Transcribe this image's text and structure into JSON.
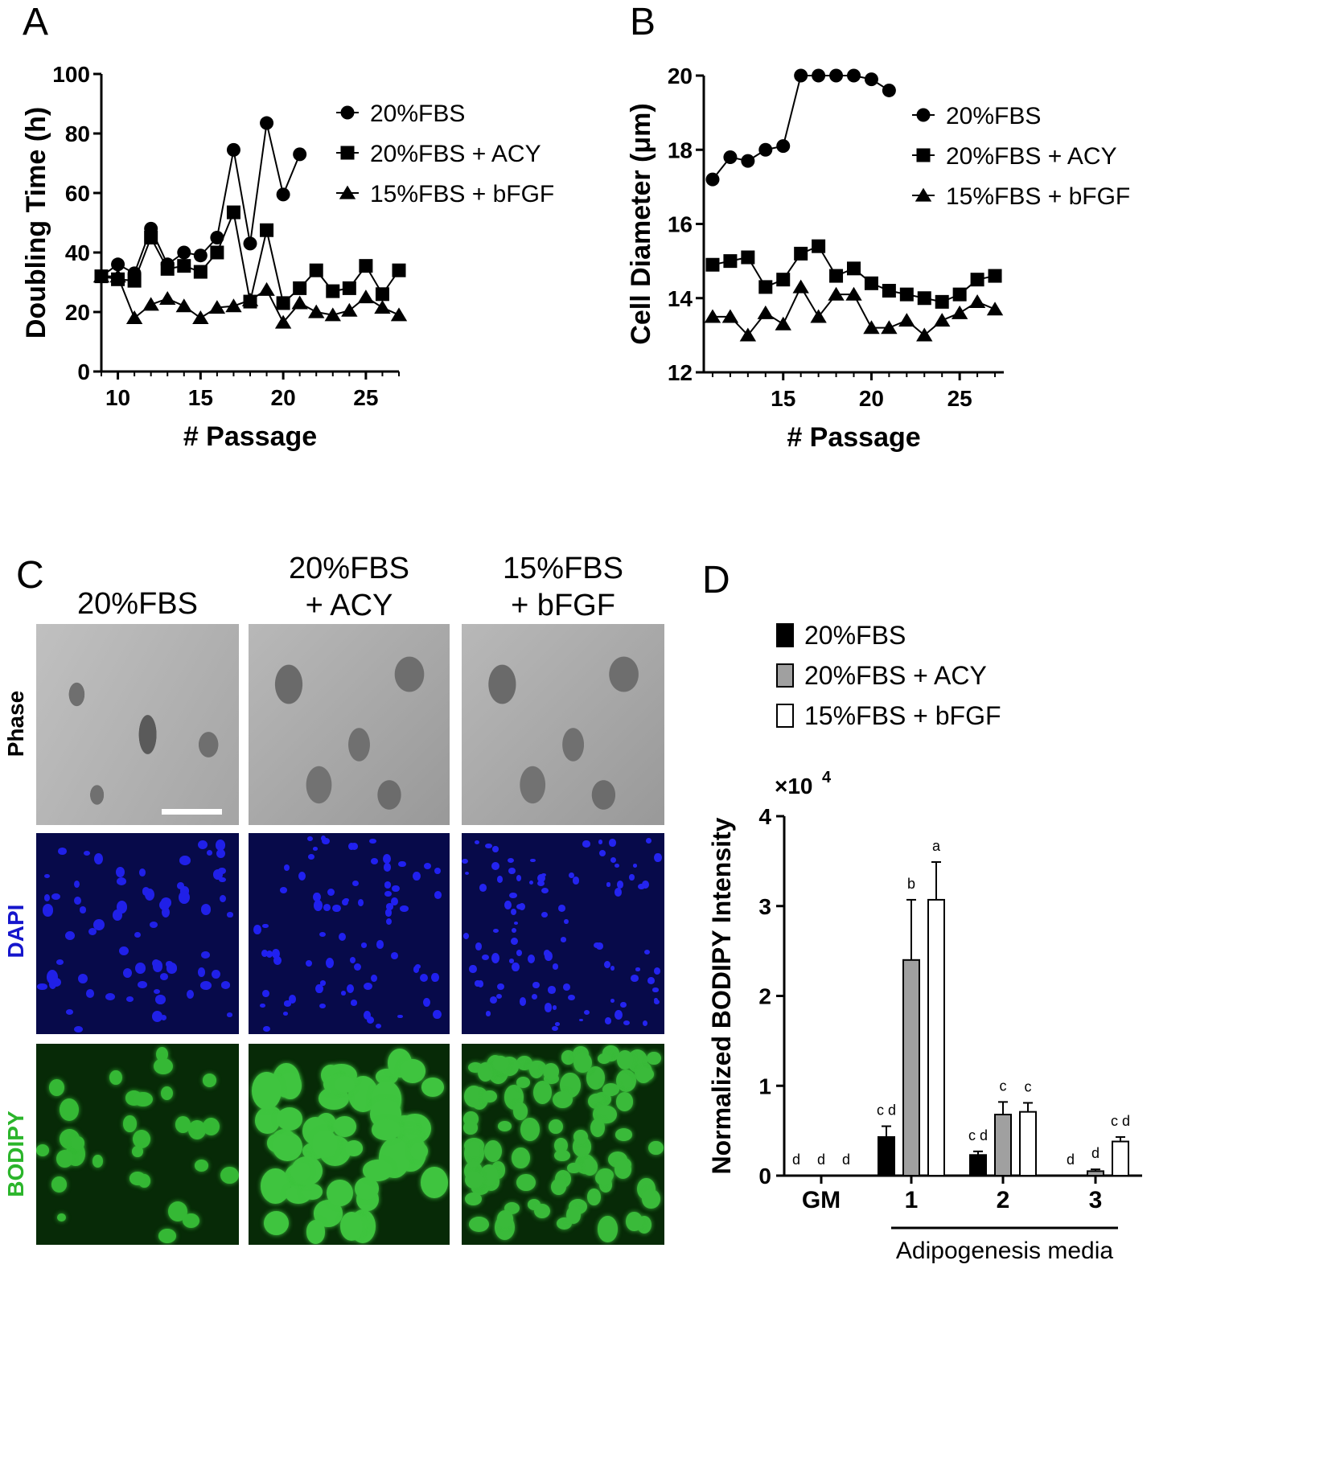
{
  "panels": {
    "A": {
      "letter": "A"
    },
    "B": {
      "letter": "B"
    },
    "C": {
      "letter": "C"
    },
    "D": {
      "letter": "D"
    }
  },
  "chart_data": [
    {
      "id": "A",
      "type": "line",
      "ylabel": "Doubling Time (h)",
      "xlabel": "# Passage",
      "xlim": [
        9,
        27
      ],
      "ylim": [
        0,
        100
      ],
      "xticks": [
        10,
        15,
        20,
        25
      ],
      "yticks": [
        0,
        20,
        40,
        60,
        80,
        100
      ],
      "legend_position": "top-right",
      "series": [
        {
          "name": "20%FBS",
          "marker": "circle",
          "x": [
            9,
            10,
            11,
            12,
            13,
            14,
            15,
            16,
            17,
            18,
            19,
            20,
            21
          ],
          "y": [
            32,
            36,
            33,
            48,
            36,
            40,
            39,
            45,
            74.5,
            43,
            83.5,
            59.5,
            73
          ]
        },
        {
          "name": "20%FBS + ACY",
          "marker": "square",
          "x": [
            9,
            10,
            11,
            12,
            13,
            14,
            15,
            16,
            17,
            18,
            19,
            20,
            21,
            22,
            23,
            24,
            25,
            26,
            27
          ],
          "y": [
            32,
            31,
            30.5,
            45,
            34.5,
            35.5,
            33.5,
            40,
            53.5,
            23.5,
            47.5,
            23,
            28,
            34,
            27,
            28,
            35.5,
            26,
            34
          ]
        },
        {
          "name": "15%FBS + bFGF",
          "marker": "triangle",
          "x": [
            9,
            10,
            11,
            12,
            13,
            14,
            15,
            16,
            17,
            18,
            19,
            20,
            21,
            22,
            23,
            24,
            25,
            26,
            27
          ],
          "y": [
            32,
            32,
            18,
            22.5,
            24.5,
            22,
            18,
            21.5,
            22,
            24,
            27.5,
            16.5,
            23,
            20,
            19,
            20.5,
            25,
            21.5,
            19
          ]
        }
      ]
    },
    {
      "id": "B",
      "type": "line",
      "ylabel": "Cell Diameter (μm)",
      "xlabel": "# Passage",
      "xlim": [
        10.5,
        27.5
      ],
      "ylim": [
        12,
        20
      ],
      "xticks": [
        15,
        20,
        25
      ],
      "yticks": [
        12,
        14,
        16,
        18,
        20
      ],
      "legend_position": "top-right",
      "series": [
        {
          "name": "20%FBS",
          "marker": "circle",
          "x": [
            11,
            12,
            13,
            14,
            15,
            16,
            17,
            18,
            19,
            20,
            21
          ],
          "y": [
            17.2,
            17.8,
            17.7,
            18.0,
            18.1,
            20.0,
            20.0,
            20.0,
            20.0,
            19.9,
            19.6
          ]
        },
        {
          "name": "20%FBS + ACY",
          "marker": "square",
          "x": [
            11,
            12,
            13,
            14,
            15,
            16,
            17,
            18,
            19,
            20,
            21,
            22,
            23,
            24,
            25,
            26,
            27
          ],
          "y": [
            14.9,
            15.0,
            15.1,
            14.3,
            14.5,
            15.2,
            15.4,
            14.6,
            14.8,
            14.4,
            14.2,
            14.1,
            14.0,
            13.9,
            14.1,
            14.5,
            14.6
          ]
        },
        {
          "name": "15%FBS + bFGF",
          "marker": "triangle",
          "x": [
            11,
            12,
            13,
            14,
            15,
            16,
            17,
            18,
            19,
            20,
            21,
            22,
            23,
            24,
            25,
            26,
            27
          ],
          "y": [
            13.5,
            13.5,
            13.0,
            13.6,
            13.3,
            14.3,
            13.5,
            14.1,
            14.1,
            13.2,
            13.2,
            13.4,
            13.0,
            13.4,
            13.6,
            13.9,
            13.7
          ]
        }
      ]
    },
    {
      "id": "D",
      "type": "bar",
      "ylabel": "Normalized BODIPY Intensity",
      "yscale_label": "×10",
      "yscale_exponent": "4",
      "ylim": [
        0,
        4
      ],
      "yticks": [
        0,
        1,
        2,
        3,
        4
      ],
      "categories": [
        "GM",
        "1",
        "2",
        "3"
      ],
      "group_label": "Adipogenesis media",
      "legend_position": "top",
      "series": [
        {
          "name": "20%FBS",
          "fill": "#000000",
          "values": [
            0,
            0.43,
            0.23,
            0
          ],
          "errors": [
            0,
            0.12,
            0.04,
            0
          ],
          "letters": [
            "d",
            "c d",
            "c d",
            "d"
          ]
        },
        {
          "name": "20%FBS + ACY",
          "fill": "#a0a0a0",
          "values": [
            0,
            2.4,
            0.68,
            0.05
          ],
          "errors": [
            0,
            0.67,
            0.14,
            0.02
          ],
          "letters": [
            "d",
            "b",
            "c",
            "d"
          ]
        },
        {
          "name": "15%FBS + bFGF",
          "fill": "#ffffff",
          "values": [
            0,
            3.07,
            0.71,
            0.38
          ],
          "errors": [
            0,
            0.42,
            0.1,
            0.05
          ],
          "letters": [
            "d",
            "a",
            "c",
            "c d"
          ]
        }
      ]
    }
  ],
  "panel_c": {
    "columns": [
      {
        "line1": "20%FBS",
        "line2": ""
      },
      {
        "line1": "20%FBS",
        "line2": "+ ACY"
      },
      {
        "line1": "15%FBS",
        "line2": "+ bFGF"
      }
    ],
    "rows": [
      {
        "label": "Phase",
        "color": "#000000"
      },
      {
        "label": "DAPI",
        "color": "#1515cc"
      },
      {
        "label": "BODIPY",
        "color": "#2bb52b"
      }
    ]
  }
}
